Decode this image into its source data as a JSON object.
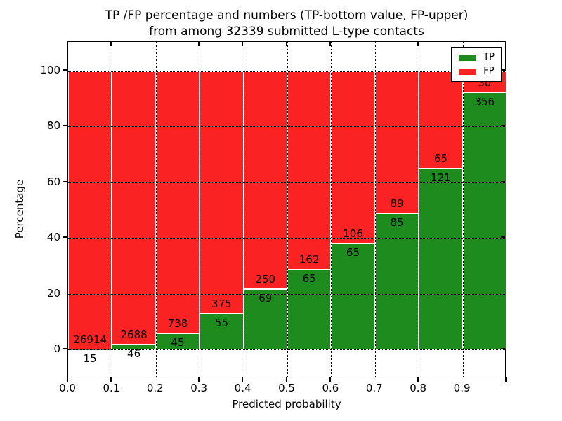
{
  "figure": {
    "title_line1": "TP /FP percentage and numbers (TP-bottom value, FP-upper)",
    "title_line2": "from among 32339 submitted L-type contacts",
    "xlabel": "Predicted probability",
    "ylabel": "Percentage"
  },
  "chart_data": {
    "type": "bar",
    "stacked": true,
    "title": "TP /FP percentage and numbers (TP-bottom value, FP-upper) from among 32339 submitted L-type contacts",
    "xlabel": "Predicted probability",
    "ylabel": "Percentage",
    "total_contacts": 32339,
    "bin_start": [
      0.0,
      0.1,
      0.2,
      0.3,
      0.4,
      0.5,
      0.6,
      0.7,
      0.8,
      0.9
    ],
    "bin_width": 0.1,
    "x_tick_labels": [
      "0.0",
      "0.1",
      "0.2",
      "0.3",
      "0.4",
      "0.5",
      "0.6",
      "0.7",
      "0.8",
      "0.9"
    ],
    "y_ticks": [
      0,
      20,
      40,
      60,
      80,
      100
    ],
    "xlim": [
      0.0,
      1.0
    ],
    "ylim": [
      -10.3,
      110.3
    ],
    "grid": true,
    "legend_position": "upper right",
    "series": [
      {
        "name": "TP",
        "color": "#1e8b1e",
        "counts": [
          15,
          46,
          45,
          55,
          69,
          65,
          65,
          85,
          121,
          356
        ]
      },
      {
        "name": "FP",
        "color": "#fa2222",
        "counts": [
          26914,
          2688,
          738,
          375,
          250,
          162,
          106,
          89,
          65,
          30
        ]
      }
    ],
    "tp_percent": [
      0.06,
      1.68,
      5.75,
      12.79,
      21.63,
      28.63,
      38.01,
      48.85,
      65.05,
      92.23
    ]
  }
}
